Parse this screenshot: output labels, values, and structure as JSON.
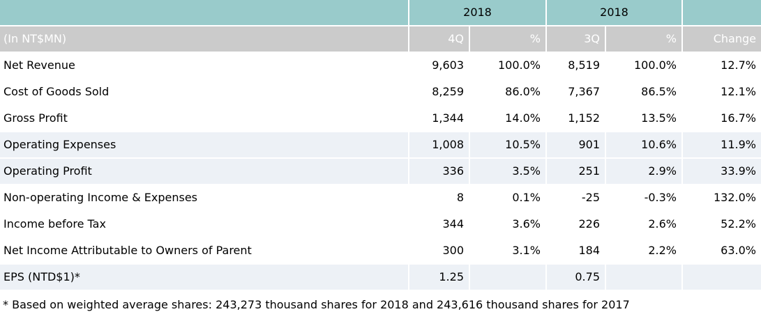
{
  "table": {
    "unit_label": "(In NT$MN)",
    "group_headers": [
      {
        "label": "2018"
      },
      {
        "label": "2018"
      }
    ],
    "columns": [
      "4Q",
      "%",
      "3Q",
      "%",
      "Change"
    ],
    "rows": [
      {
        "label": "Net Revenue",
        "q4": "9,603",
        "q4_pct": "100.0%",
        "q3": "8,519",
        "q3_pct": "100.0%",
        "change": "12.7%",
        "shaded": false
      },
      {
        "label": "Cost of Goods Sold",
        "q4": "8,259",
        "q4_pct": "86.0%",
        "q3": "7,367",
        "q3_pct": "86.5%",
        "change": "12.1%",
        "shaded": false
      },
      {
        "label": "Gross Profit",
        "q4": "1,344",
        "q4_pct": "14.0%",
        "q3": "1,152",
        "q3_pct": "13.5%",
        "change": "16.7%",
        "shaded": false
      },
      {
        "label": "Operating Expenses",
        "q4": "1,008",
        "q4_pct": "10.5%",
        "q3": "901",
        "q3_pct": "10.6%",
        "change": "11.9%",
        "shaded": true
      },
      {
        "label": "Operating Profit",
        "q4": "336",
        "q4_pct": "3.5%",
        "q3": "251",
        "q3_pct": "2.9%",
        "change": "33.9%",
        "shaded": true
      },
      {
        "label": "Non-operating Income & Expenses",
        "q4": "8",
        "q4_pct": "0.1%",
        "q3": "-25",
        "q3_pct": "-0.3%",
        "change": "132.0%",
        "shaded": false
      },
      {
        "label": "Income before Tax",
        "q4": "344",
        "q4_pct": "3.6%",
        "q3": "226",
        "q3_pct": "2.6%",
        "change": "52.2%",
        "shaded": false
      },
      {
        "label": "Net Income Attributable to Owners of Parent",
        "q4": "300",
        "q4_pct": "3.1%",
        "q3": "184",
        "q3_pct": "2.2%",
        "change": "63.0%",
        "shaded": false
      },
      {
        "label": "EPS (NTD$1)*",
        "q4": "1.25",
        "q4_pct": "",
        "q3": "0.75",
        "q3_pct": "",
        "change": "",
        "shaded": true
      }
    ],
    "footnote": "* Based on weighted average shares: 243,273 thousand shares for 2018 and 243,616 thousand shares for 2017"
  },
  "colors": {
    "teal_header": "#99CBCB",
    "gray_header": "#CBCBCB",
    "shaded_row": "#EDF1F6",
    "separator": "#FFFFFF",
    "header_text": "#FFFFFF",
    "body_text": "#000000"
  }
}
